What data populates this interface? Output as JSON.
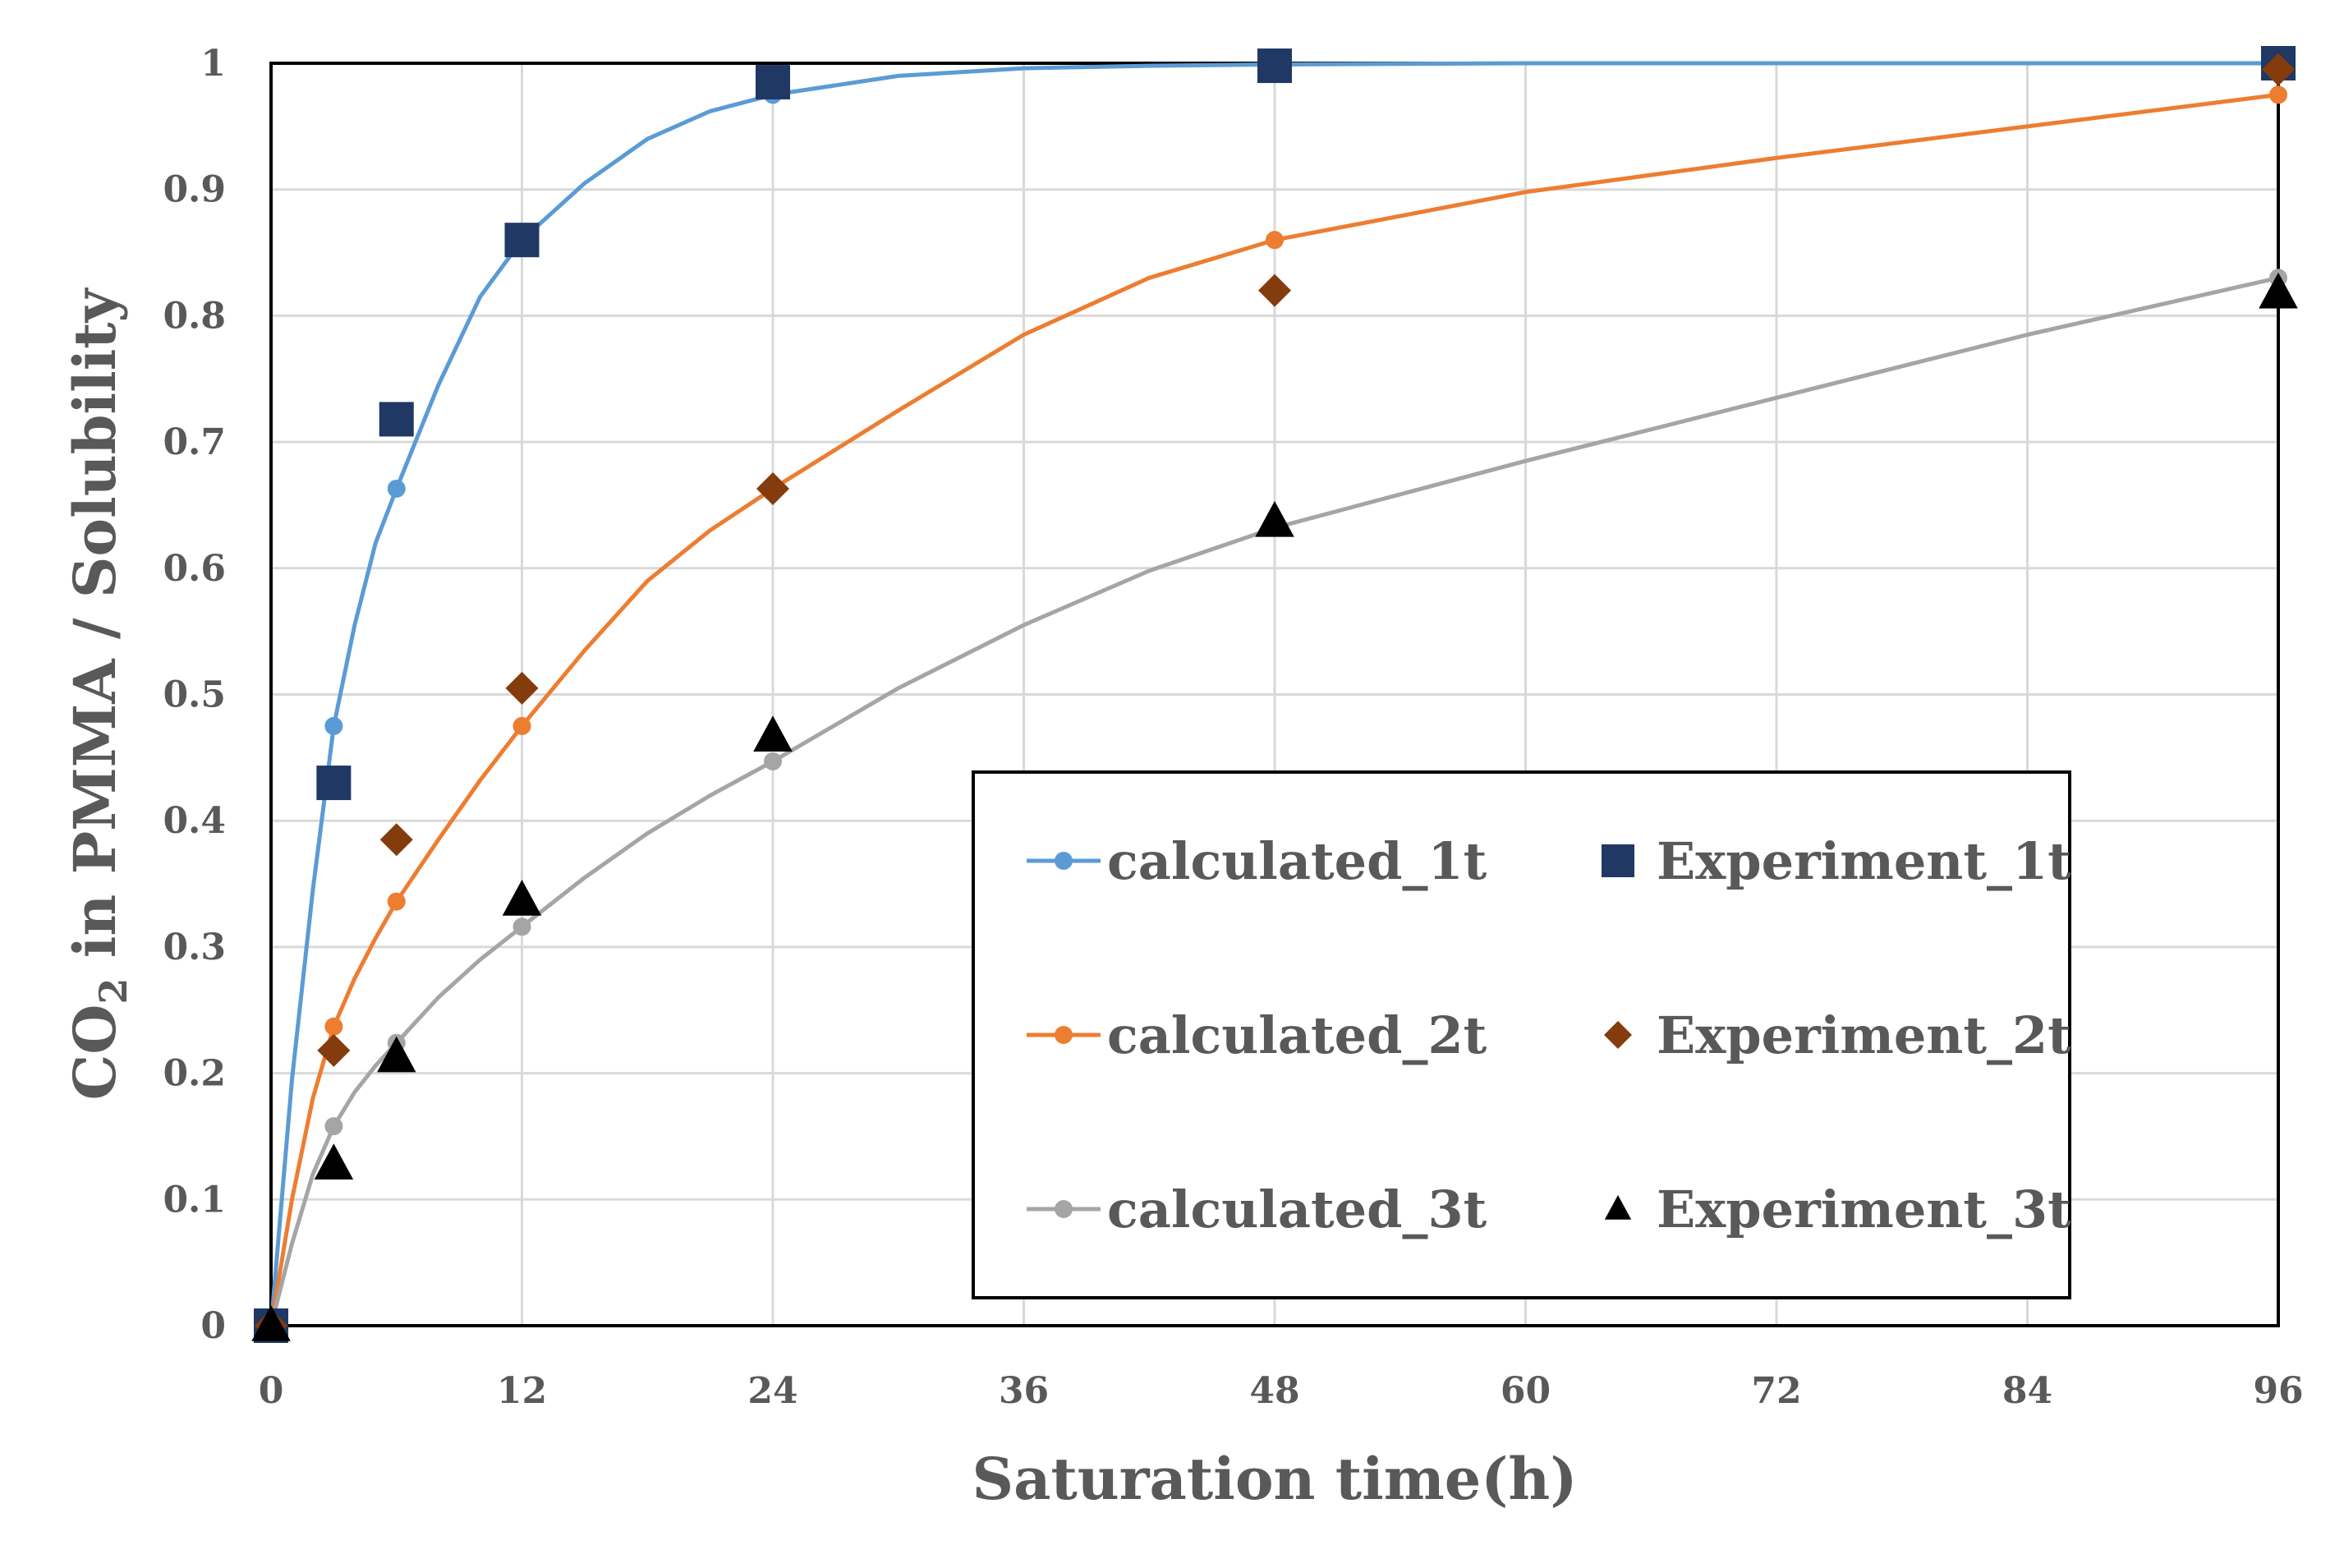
{
  "chart_data": {
    "type": "line",
    "title": "",
    "xlabel": "Saturation time(h)",
    "ylabel": {
      "prefix": "CO",
      "subscript": "2",
      "suffix": " in PMMA / Solubility"
    },
    "xlim": [
      0,
      96
    ],
    "ylim": [
      0,
      1
    ],
    "xticks": [
      0,
      12,
      24,
      36,
      48,
      60,
      72,
      84,
      96
    ],
    "yticks": [
      0,
      0.1,
      0.2,
      0.3,
      0.4,
      0.5,
      0.6,
      0.7,
      0.8,
      0.9,
      1
    ],
    "xtick_labels": [
      "0",
      "12",
      "24",
      "36",
      "48",
      "60",
      "72",
      "84",
      "96"
    ],
    "ytick_labels": [
      "0",
      "0.1",
      "0.2",
      "0.3",
      "0.4",
      "0.5",
      "0.6",
      "0.7",
      "0.8",
      "0.9",
      "1"
    ],
    "grid": true,
    "legend_position": "lower-right",
    "series": [
      {
        "name": "calculated_1t",
        "kind": "line-marker",
        "color": "#5b9bd5",
        "marker": "circle",
        "x": [
          0,
          3,
          6,
          12,
          24,
          48,
          96
        ],
        "y": [
          0,
          0.475,
          0.663,
          0.86,
          0.975,
          0.999,
          1.0
        ],
        "curve": [
          [
            0,
            0
          ],
          [
            1,
            0.195
          ],
          [
            2,
            0.345
          ],
          [
            3,
            0.475
          ],
          [
            4,
            0.555
          ],
          [
            5,
            0.62
          ],
          [
            6,
            0.663
          ],
          [
            8,
            0.745
          ],
          [
            10,
            0.815
          ],
          [
            12,
            0.86
          ],
          [
            15,
            0.905
          ],
          [
            18,
            0.94
          ],
          [
            21,
            0.962
          ],
          [
            24,
            0.975
          ],
          [
            30,
            0.99
          ],
          [
            36,
            0.996
          ],
          [
            42,
            0.998
          ],
          [
            48,
            0.999
          ],
          [
            60,
            1.0
          ],
          [
            72,
            1.0
          ],
          [
            84,
            1.0
          ],
          [
            96,
            1.0
          ]
        ]
      },
      {
        "name": "calculated_2t",
        "kind": "line-marker",
        "color": "#ed7d31",
        "marker": "circle",
        "x": [
          0,
          3,
          6,
          12,
          24,
          48,
          96
        ],
        "y": [
          0,
          0.237,
          0.336,
          0.475,
          0.663,
          0.86,
          0.975
        ],
        "curve": [
          [
            0,
            0
          ],
          [
            1,
            0.1
          ],
          [
            2,
            0.18
          ],
          [
            3,
            0.237
          ],
          [
            4,
            0.275
          ],
          [
            5,
            0.307
          ],
          [
            6,
            0.336
          ],
          [
            8,
            0.385
          ],
          [
            10,
            0.432
          ],
          [
            12,
            0.475
          ],
          [
            15,
            0.535
          ],
          [
            18,
            0.59
          ],
          [
            21,
            0.63
          ],
          [
            24,
            0.663
          ],
          [
            30,
            0.725
          ],
          [
            36,
            0.785
          ],
          [
            42,
            0.83
          ],
          [
            48,
            0.86
          ],
          [
            60,
            0.898
          ],
          [
            72,
            0.925
          ],
          [
            84,
            0.95
          ],
          [
            96,
            0.975
          ]
        ]
      },
      {
        "name": "calculated_3t",
        "kind": "line-marker",
        "color": "#a5a5a5",
        "marker": "circle",
        "x": [
          0,
          3,
          6,
          12,
          24,
          48,
          96
        ],
        "y": [
          0,
          0.158,
          0.224,
          0.316,
          0.447,
          0.632,
          0.83
        ],
        "curve": [
          [
            0,
            0
          ],
          [
            1,
            0.065
          ],
          [
            2,
            0.12
          ],
          [
            3,
            0.158
          ],
          [
            4,
            0.185
          ],
          [
            5,
            0.206
          ],
          [
            6,
            0.224
          ],
          [
            8,
            0.26
          ],
          [
            10,
            0.29
          ],
          [
            12,
            0.316
          ],
          [
            15,
            0.355
          ],
          [
            18,
            0.39
          ],
          [
            21,
            0.42
          ],
          [
            24,
            0.447
          ],
          [
            30,
            0.505
          ],
          [
            36,
            0.555
          ],
          [
            42,
            0.598
          ],
          [
            48,
            0.632
          ],
          [
            60,
            0.685
          ],
          [
            72,
            0.735
          ],
          [
            84,
            0.785
          ],
          [
            96,
            0.83
          ]
        ]
      },
      {
        "name": "Experiment_1t",
        "kind": "marker",
        "color": "#1f3864",
        "marker": "square",
        "x": [
          0,
          3,
          6,
          12,
          24,
          48,
          96
        ],
        "y": [
          0,
          0.43,
          0.718,
          0.86,
          0.985,
          0.998,
          1.0
        ]
      },
      {
        "name": "Experiment_2t",
        "kind": "marker",
        "color": "#843c0c",
        "marker": "diamond",
        "x": [
          0,
          3,
          6,
          12,
          24,
          48,
          96
        ],
        "y": [
          0,
          0.218,
          0.385,
          0.505,
          0.663,
          0.82,
          0.995
        ]
      },
      {
        "name": "Experiment_3t",
        "kind": "marker",
        "color": "#000000",
        "marker": "triangle",
        "x": [
          0,
          3,
          6,
          12,
          24,
          48,
          96
        ],
        "y": [
          0,
          0.128,
          0.213,
          0.337,
          0.467,
          0.637,
          0.818
        ]
      }
    ],
    "legend": {
      "entries": [
        {
          "label": "calculated_1t",
          "series": "calculated_1t"
        },
        {
          "label": "Experiment_1t",
          "series": "Experiment_1t"
        },
        {
          "label": "calculated_2t",
          "series": "calculated_2t"
        },
        {
          "label": "Experiment_2t",
          "series": "Experiment_2t"
        },
        {
          "label": "calculated_3t",
          "series": "calculated_3t"
        },
        {
          "label": "Experiment_3t",
          "series": "Experiment_3t"
        }
      ]
    }
  }
}
